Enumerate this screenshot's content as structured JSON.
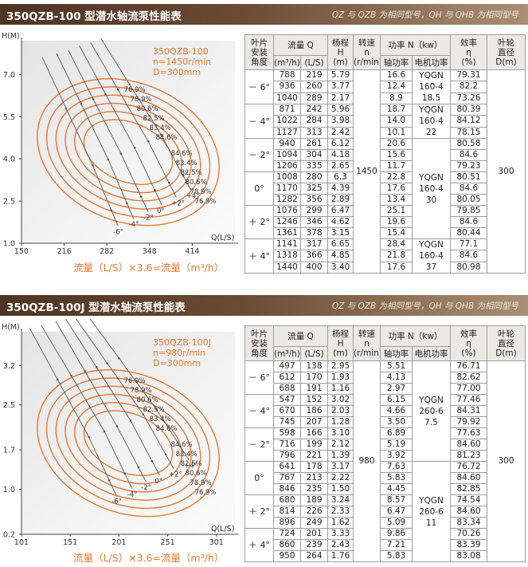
{
  "header_note": "QZ 与 QZB 为相同型号，QH 与 QHB 为相同型号",
  "table_headers": {
    "blade_angle": [
      "叶片",
      "安装",
      "角度"
    ],
    "flow": "流量 Q",
    "flow_unit_m3h": "(m³/h)",
    "flow_unit_ls": "(L/S)",
    "head": [
      "杨程",
      "H",
      "(m)"
    ],
    "speed": [
      "转速",
      "n",
      "(r/min)"
    ],
    "power": "功率 N（kw）",
    "shaft_power": "轴功率",
    "motor_power": "电机功率",
    "efficiency": [
      "效率",
      "η",
      "(%)"
    ],
    "impeller": [
      "叶轮",
      "直径",
      "D(m)"
    ]
  },
  "caption": {
    "text": "流量（L/S）×3.6=流量（m³/h）"
  },
  "sections": [
    {
      "title": "350QZB-100 型潜水轴流泵性能表",
      "chart_data": {
        "type": "line",
        "title": "",
        "xlabel": "Q(L/S)",
        "ylabel": "H(M)",
        "x_ticks": [
          150,
          216,
          282,
          348,
          414
        ],
        "y_ticks": [
          1.0,
          2.5,
          4.0,
          5.5,
          7.0
        ],
        "xlim": [
          150,
          480
        ],
        "ylim": [
          1.0,
          8.2
        ],
        "legend_lines": [
          "350QZB-100",
          "n=1450r/min",
          "D=300mm"
        ],
        "angle_labels": [
          "-6°",
          "-4°",
          "-2°",
          "0°",
          "+2°",
          "+4°"
        ],
        "series": [
          {
            "name": "-6°",
            "x": [
              219,
              260,
              289
            ],
            "y": [
              5.79,
              3.77,
              2.17
            ]
          },
          {
            "name": "-4°",
            "x": [
              242,
              284,
              313
            ],
            "y": [
              5.96,
              3.98,
              2.42
            ]
          },
          {
            "name": "-2°",
            "x": [
              261,
              304,
              335
            ],
            "y": [
              6.12,
              4.18,
              2.65
            ]
          },
          {
            "name": "0°",
            "x": [
              280,
              325,
              356
            ],
            "y": [
              6.3,
              4.39,
              2.89
            ]
          },
          {
            "name": "+2°",
            "x": [
              299,
              346,
              378
            ],
            "y": [
              6.47,
              4.62,
              3.15
            ]
          },
          {
            "name": "+4°",
            "x": [
              317,
              366,
              400
            ],
            "y": [
              6.65,
              4.85,
              3.4
            ]
          }
        ],
        "efficiency_labels_left": [
          "76.9%",
          "78.9%",
          "80.6%",
          "82.5%",
          "83.4%",
          "84.6%"
        ],
        "efficiency_labels_right": [
          "84.6%",
          "83.4%",
          "82.5%",
          "80.6%",
          "78.9%",
          "76.9%"
        ]
      },
      "table": {
        "speed": "1450",
        "impeller": "300",
        "groups": [
          {
            "angle": "－ 6°",
            "motor": [
              "YQGN",
              "160-4",
              "18.5"
            ],
            "rows": [
              [
                "788",
                "219",
                "5.79",
                "16.6",
                "79.31"
              ],
              [
                "936",
                "260",
                "3.77",
                "12.4",
                "82.2"
              ],
              [
                "1040",
                "289",
                "2.17",
                "8.9",
                "73.26"
              ]
            ]
          },
          {
            "angle": "－ 4°",
            "motor": [
              "YQGN",
              "160-4",
              "22"
            ],
            "rows": [
              [
                "871",
                "242",
                "5.96",
                "18.7",
                "80.39"
              ],
              [
                "1022",
                "284",
                "3.98",
                "14.0",
                "84.12"
              ],
              [
                "1127",
                "313",
                "2.42",
                "10.1",
                "78.15"
              ]
            ]
          },
          {
            "angle": "－ 2°",
            "motor": [
              "YQGN",
              "160-4",
              "30"
            ],
            "rows": [
              [
                "940",
                "261",
                "6.12",
                "20.6",
                "80.58"
              ],
              [
                "1094",
                "304",
                "4.18",
                "15.6",
                "84.6"
              ],
              [
                "1206",
                "335",
                "2.65",
                "11.7",
                "79.23"
              ]
            ]
          },
          {
            "angle": "0°",
            "motor": null,
            "rows": [
              [
                "1008",
                "280",
                "6.3",
                "22.8",
                "80.51"
              ],
              [
                "1170",
                "325",
                "4.39",
                "17.6",
                "84.6"
              ],
              [
                "1282",
                "356",
                "2.89",
                "13.4",
                "80.05"
              ]
            ]
          },
          {
            "angle": "＋ 2°",
            "motor": null,
            "rows": [
              [
                "1076",
                "299",
                "6.47",
                "25.1",
                "79.85"
              ],
              [
                "1246",
                "346",
                "4.62",
                "19.6",
                "84.6"
              ],
              [
                "1361",
                "378",
                "3.15",
                "15.4",
                "80.44"
              ]
            ]
          },
          {
            "angle": "＋ 4°",
            "motor": [
              "YQGN",
              "160-4",
              "37"
            ],
            "rows": [
              [
                "1141",
                "317",
                "6.65",
                "28.4",
                "77.1"
              ],
              [
                "1318",
                "366",
                "4.85",
                "21.8",
                "84.6"
              ],
              [
                "1440",
                "400",
                "3.40",
                "17.6",
                "80.98"
              ]
            ]
          }
        ]
      }
    },
    {
      "title": "350QZB-100J 型潜水轴流泵性能表",
      "chart_data": {
        "type": "line",
        "title": "",
        "xlabel": "Q(L/S)",
        "ylabel": "H(M)",
        "x_ticks": [
          101,
          151,
          201,
          251,
          301
        ],
        "y_ticks": [
          0.2,
          1.0,
          1.7,
          2.5,
          3.2
        ],
        "xlim": [
          101,
          320
        ],
        "ylim": [
          0.2,
          3.8
        ],
        "legend_lines": [
          "350QZB-100J",
          "n=980r/min",
          "D=300mm"
        ],
        "angle_labels": [
          "-6°",
          "-4°",
          "-2°",
          "0°",
          "+2°",
          "+4°"
        ],
        "series": [
          {
            "name": "-6°",
            "x": [
              138,
              170,
              191
            ],
            "y": [
              2.95,
              1.93,
              1.16
            ]
          },
          {
            "name": "-4°",
            "x": [
              152,
              186,
              207
            ],
            "y": [
              3.02,
              2.03,
              1.28
            ]
          },
          {
            "name": "-2°",
            "x": [
              166,
              199,
              221
            ],
            "y": [
              3.1,
              2.12,
              1.39
            ]
          },
          {
            "name": "0°",
            "x": [
              178,
              213,
              235
            ],
            "y": [
              3.17,
              2.22,
              1.5
            ]
          },
          {
            "name": "+2°",
            "x": [
              189,
              226,
              249
            ],
            "y": [
              3.24,
              2.33,
              1.62
            ]
          },
          {
            "name": "+4°",
            "x": [
              201,
              239,
              264
            ],
            "y": [
              3.33,
              2.43,
              1.76
            ]
          }
        ],
        "efficiency_labels_left": [
          "76.9%",
          "78.9%",
          "80.6%",
          "82.5%",
          "83.4%",
          "84.6%"
        ],
        "efficiency_labels_right": [
          "84.6%",
          "83.4%",
          "82.5%",
          "80.6%",
          "78.9%",
          "76.9%"
        ]
      },
      "table": {
        "speed": "980",
        "impeller": "300",
        "groups": [
          {
            "angle": "－ 6°",
            "motor": null,
            "rows": [
              [
                "497",
                "138",
                "2.95",
                "5.51",
                "76.71"
              ],
              [
                "612",
                "170",
                "1.93",
                "4.13",
                "82.62"
              ],
              [
                "688",
                "191",
                "1.16",
                "2.97",
                "77.00"
              ]
            ]
          },
          {
            "angle": "－ 4°",
            "motor": [
              "YQGN",
              "260-6",
              "7.5"
            ],
            "rows": [
              [
                "547",
                "152",
                "3.02",
                "6.15",
                "77.46"
              ],
              [
                "670",
                "186",
                "2.03",
                "4.66",
                "84.31"
              ],
              [
                "745",
                "207",
                "1.28",
                "3.50",
                "79.92"
              ]
            ]
          },
          {
            "angle": "－ 2°",
            "motor": null,
            "rows": [
              [
                "598",
                "166",
                "3.10",
                "6.89",
                "77.63"
              ],
              [
                "716",
                "199",
                "2.12",
                "5.19",
                "84.60"
              ],
              [
                "796",
                "221",
                "1.39",
                "3.92",
                "81.23"
              ]
            ]
          },
          {
            "angle": "0°",
            "motor": null,
            "rows": [
              [
                "641",
                "178",
                "3.17",
                "7.63",
                "76.72"
              ],
              [
                "767",
                "213",
                "2.22",
                "5.83",
                "84.60"
              ],
              [
                "846",
                "235",
                "1.50",
                "4.45",
                "82.85"
              ]
            ]
          },
          {
            "angle": "＋ 2°",
            "motor": [
              "YQGN",
              "260-6",
              "11"
            ],
            "rows": [
              [
                "680",
                "189",
                "3.24",
                "8.57",
                "74.54"
              ],
              [
                "814",
                "226",
                "2.33",
                "6.47",
                "84.60"
              ],
              [
                "896",
                "249",
                "1.62",
                "5.09",
                "83.34"
              ]
            ]
          },
          {
            "angle": "＋ 4°",
            "motor": null,
            "rows": [
              [
                "724",
                "201",
                "3.33",
                "9.86",
                "70.26"
              ],
              [
                "860",
                "239",
                "2.43",
                "7.21",
                "83.39"
              ],
              [
                "950",
                "264",
                "1.76",
                "5.83",
                "83.08"
              ]
            ]
          }
        ]
      }
    }
  ]
}
